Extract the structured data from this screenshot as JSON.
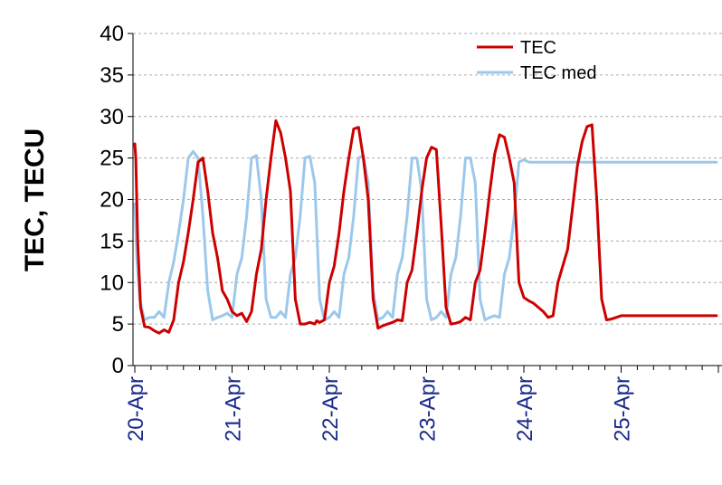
{
  "chart_data": {
    "type": "line",
    "title": "",
    "xlabel": "",
    "ylabel": "TEC, TECU",
    "ylim": [
      0,
      40
    ],
    "yticks": [
      "0",
      "5",
      "10",
      "15",
      "20",
      "25",
      "30",
      "35",
      "40"
    ],
    "xlim": [
      0,
      6
    ],
    "xtick_labels": [
      "20-Apr",
      "21-Apr",
      "22-Apr",
      "23-Apr",
      "24-Apr",
      "25-Apr"
    ],
    "minor_ticks_per_day": 24,
    "grid": "horizontal-dashed",
    "legend_position": "top-right",
    "series": [
      {
        "name": "TEC",
        "color": "#cc0000",
        "x": [
          0,
          0.01,
          0.03,
          0.06,
          0.1,
          0.15,
          0.2,
          0.25,
          0.3,
          0.35,
          0.4,
          0.45,
          0.5,
          0.55,
          0.6,
          0.65,
          0.7,
          0.75,
          0.8,
          0.85,
          0.87,
          0.9,
          0.95,
          1.0,
          1.05,
          1.1,
          1.15,
          1.2,
          1.25,
          1.3,
          1.35,
          1.4,
          1.45,
          1.5,
          1.55,
          1.6,
          1.65,
          1.7,
          1.75,
          1.8,
          1.85,
          1.87,
          1.9,
          1.95,
          2.0,
          2.05,
          2.1,
          2.15,
          2.2,
          2.25,
          2.3,
          2.35,
          2.4,
          2.45,
          2.5,
          2.55,
          2.6,
          2.65,
          2.7,
          2.75,
          2.8,
          2.85,
          2.9,
          2.95,
          3.0,
          3.05,
          3.1,
          3.15,
          3.2,
          3.25,
          3.3,
          3.35,
          3.4,
          3.45,
          3.5,
          3.55,
          3.6,
          3.65,
          3.7,
          3.75,
          3.8,
          3.85,
          3.9,
          3.95,
          4.0,
          4.05,
          4.1,
          4.15,
          4.2,
          4.25,
          4.3,
          4.35,
          4.4,
          4.45,
          4.5,
          4.55,
          4.6,
          4.65,
          4.7,
          4.75,
          4.8,
          4.85,
          4.9,
          4.95,
          5.0,
          5.05,
          5.1,
          5.15,
          5.2,
          5.25,
          5.3,
          5.35,
          5.4,
          5.45,
          5.5,
          5.55,
          5.6,
          5.65,
          5.7,
          5.75,
          5.8,
          5.85,
          5.9,
          5.95,
          5.98
        ],
        "values": [
          26.7,
          25.0,
          15.0,
          7.0,
          4.7,
          4.6,
          4.2,
          3.9,
          4.3,
          4.0,
          5.5,
          10.0,
          12.5,
          16.0,
          20.0,
          24.5,
          25.0,
          21.0,
          16.0,
          13.0,
          11.5,
          9.0,
          8.0,
          6.5,
          6.0,
          6.3,
          5.3,
          6.5,
          11.0,
          14.0,
          20.0,
          25.0,
          29.5,
          28.0,
          25.0,
          21.0,
          8.0,
          5.0,
          5.0,
          5.2,
          5.0,
          5.4,
          5.2,
          5.5,
          10.0,
          12.0,
          16.0,
          21.0,
          25.0,
          28.5,
          28.7,
          25.0,
          20.0,
          8.0,
          4.5,
          4.8,
          5.0,
          5.2,
          5.5,
          5.4,
          10.0,
          11.5,
          16.0,
          21.0,
          25.0,
          26.3,
          26.0,
          17.0,
          7.0,
          5.0,
          5.1,
          5.3,
          5.8,
          5.5,
          10.0,
          11.5,
          16.0,
          21.0,
          25.5,
          27.8,
          27.5,
          25.0,
          22.0,
          10.0,
          8.2,
          7.8,
          7.5,
          7.0,
          6.5,
          5.8,
          6.0,
          10.0,
          12.0,
          14.0,
          19.0,
          24.0,
          27.0,
          28.8,
          29.0,
          20.0,
          8.0,
          5.5,
          5.6,
          5.8,
          6.0,
          6.0,
          6.0,
          6.0,
          6.0,
          6.0,
          6.0,
          6.0,
          6.0,
          6.0,
          6.0,
          6.0,
          6.0,
          6.0,
          6.0,
          6.0,
          6.0,
          6.0,
          6.0,
          6.0,
          6.0
        ]
      },
      {
        "name": "TEC med",
        "color": "#9cc8ec",
        "x": [
          0,
          0.02,
          0.05,
          0.1,
          0.15,
          0.2,
          0.25,
          0.3,
          0.35,
          0.4,
          0.45,
          0.5,
          0.55,
          0.6,
          0.65,
          0.7,
          0.75,
          0.8,
          0.85,
          0.9,
          0.95,
          1.0,
          1.05,
          1.1,
          1.15,
          1.2,
          1.25,
          1.3,
          1.35,
          1.4,
          1.45,
          1.5,
          1.55,
          1.6,
          1.65,
          1.7,
          1.75,
          1.8,
          1.85,
          1.9,
          1.95,
          2.0,
          2.05,
          2.1,
          2.15,
          2.2,
          2.25,
          2.3,
          2.35,
          2.4,
          2.45,
          2.5,
          2.55,
          2.6,
          2.65,
          2.7,
          2.75,
          2.8,
          2.85,
          2.9,
          2.95,
          3.0,
          3.05,
          3.1,
          3.15,
          3.2,
          3.25,
          3.3,
          3.35,
          3.4,
          3.45,
          3.5,
          3.55,
          3.6,
          3.65,
          3.7,
          3.75,
          3.8,
          3.85,
          3.9,
          3.95,
          4.0,
          4.05,
          4.1,
          4.15,
          4.2,
          4.25,
          4.3,
          4.35,
          4.4,
          4.45,
          4.5,
          4.55,
          4.6,
          4.65,
          4.7,
          4.75,
          4.8,
          4.85,
          4.9,
          4.95,
          5.0,
          5.05,
          5.1,
          5.15,
          5.2,
          5.25,
          5.3,
          5.35,
          5.4,
          5.45,
          5.5,
          5.55,
          5.6,
          5.65,
          5.7,
          5.75,
          5.8,
          5.85,
          5.9,
          5.95,
          5.98
        ],
        "values": [
          19.5,
          13.0,
          8.0,
          5.5,
          5.8,
          5.8,
          6.5,
          5.8,
          10.0,
          12.5,
          16.0,
          20.0,
          25.0,
          25.8,
          25.0,
          18.0,
          9.0,
          5.5,
          5.8,
          6.0,
          6.3,
          5.8,
          11.0,
          13.0,
          18.0,
          25.0,
          25.3,
          20.0,
          8.0,
          5.8,
          5.8,
          6.5,
          5.8,
          11.0,
          13.0,
          18.0,
          25.0,
          25.2,
          22.0,
          8.0,
          5.5,
          5.8,
          6.5,
          5.8,
          11.0,
          13.0,
          18.0,
          25.0,
          25.3,
          22.0,
          9.0,
          5.5,
          5.8,
          6.5,
          5.8,
          11.0,
          13.0,
          18.0,
          25.0,
          25.0,
          21.0,
          8.0,
          5.5,
          5.8,
          6.5,
          5.8,
          11.0,
          13.0,
          18.0,
          25.0,
          25.0,
          22.0,
          8.0,
          5.5,
          5.8,
          6.0,
          5.8,
          11.0,
          13.0,
          18.0,
          24.5,
          24.8,
          24.5,
          24.5,
          24.5,
          24.5,
          24.5,
          24.5,
          24.5,
          24.5,
          24.5,
          24.5,
          24.5,
          24.5,
          24.5,
          24.5,
          24.5,
          24.5,
          24.5,
          24.5,
          24.5,
          24.5,
          24.5,
          24.5,
          24.5,
          24.5,
          24.5,
          24.5,
          24.5,
          24.5,
          24.5,
          24.5,
          24.5,
          24.5,
          24.5,
          24.5,
          24.5,
          24.5,
          24.5,
          24.5,
          24.5,
          24.5
        ]
      }
    ]
  }
}
